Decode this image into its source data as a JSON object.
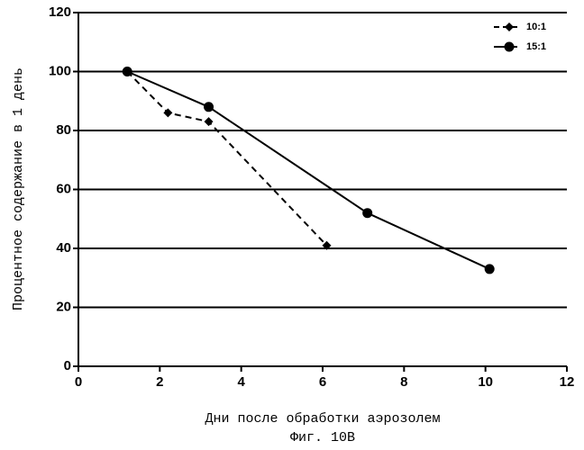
{
  "chart_data": {
    "type": "line",
    "x_label": "Дни после обработки аэрозолем",
    "y_label": "Процентное содержание в 1 день",
    "caption": "Фиг. 10В",
    "series": [
      {
        "name": "10:1",
        "color": "#000000",
        "dashed": true,
        "marker": "diamond",
        "x": [
          1.2,
          2.2,
          3.2,
          6.1
        ],
        "values": [
          100,
          86,
          83,
          41
        ]
      },
      {
        "name": "15:1",
        "color": "#000000",
        "dashed": false,
        "marker": "circle",
        "x": [
          1.2,
          3.2,
          7.1,
          10.1
        ],
        "values": [
          100,
          88,
          52,
          33
        ]
      }
    ],
    "xlim": [
      0,
      12
    ],
    "xticks": [
      0,
      2,
      4,
      6,
      8,
      10,
      12
    ],
    "ylim": [
      0,
      120
    ],
    "yticks": [
      0,
      20,
      40,
      60,
      80,
      100,
      120
    ],
    "grid": true,
    "legend": "top-right"
  }
}
